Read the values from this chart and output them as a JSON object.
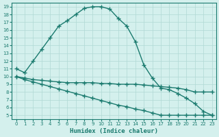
{
  "line1_x": [
    0,
    1,
    2,
    3,
    4,
    5,
    6,
    7,
    8,
    9,
    10,
    11,
    12,
    13,
    14,
    15,
    16,
    17,
    18,
    19,
    20,
    21,
    22,
    23
  ],
  "line1_y": [
    11.0,
    10.5,
    12.0,
    13.5,
    15.0,
    16.5,
    17.2,
    18.0,
    18.8,
    19.0,
    19.0,
    18.7,
    17.5,
    16.5,
    14.5,
    11.5,
    9.8,
    8.5,
    8.3,
    7.8,
    7.2,
    6.5,
    5.5,
    5.0
  ],
  "line2_x": [
    0,
    1,
    2,
    3,
    4,
    5,
    6,
    7,
    8,
    9,
    10,
    11,
    12,
    13,
    14,
    15,
    16,
    17,
    18,
    19,
    20,
    21,
    22,
    23
  ],
  "line2_y": [
    10.0,
    9.8,
    9.6,
    9.5,
    9.4,
    9.3,
    9.2,
    9.2,
    9.2,
    9.2,
    9.1,
    9.1,
    9.0,
    9.0,
    9.0,
    8.9,
    8.8,
    8.7,
    8.6,
    8.5,
    8.3,
    8.0,
    8.0,
    8.0
  ],
  "line3_x": [
    0,
    1,
    2,
    3,
    4,
    5,
    6,
    7,
    8,
    9,
    10,
    11,
    12,
    13,
    14,
    15,
    16,
    17,
    18,
    19,
    20,
    21,
    22,
    23
  ],
  "line3_y": [
    10.0,
    9.6,
    9.3,
    9.0,
    8.7,
    8.4,
    8.1,
    7.8,
    7.5,
    7.2,
    6.9,
    6.6,
    6.3,
    6.1,
    5.8,
    5.6,
    5.3,
    5.0,
    5.0,
    5.0,
    5.0,
    5.0,
    5.0,
    5.0
  ],
  "line_color": "#1a7a6e",
  "bg_color": "#d4f0ed",
  "grid_color": "#b0d8d4",
  "xlabel": "Humidex (Indice chaleur)",
  "ylabel_ticks": [
    5,
    6,
    7,
    8,
    9,
    10,
    11,
    12,
    13,
    14,
    15,
    16,
    17,
    18,
    19
  ],
  "xlabel_ticks": [
    0,
    1,
    2,
    3,
    4,
    5,
    6,
    7,
    8,
    9,
    10,
    11,
    12,
    13,
    14,
    15,
    16,
    17,
    18,
    19,
    20,
    21,
    22,
    23
  ],
  "ylim": [
    4.5,
    19.5
  ],
  "xlim": [
    -0.5,
    23.5
  ],
  "marker": "+",
  "markersize": 4,
  "linewidth": 1.0
}
